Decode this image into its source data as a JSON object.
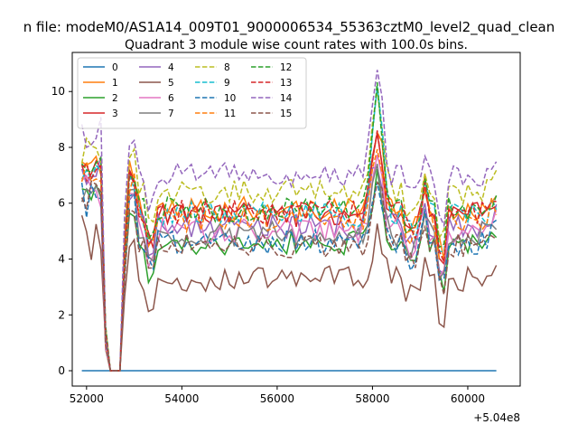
{
  "figure": {
    "suptitle": "n file: modeM0/AS1A14_009T01_9000006534_55363cztM0_level2_quad_clean",
    "title": "Quadrant 3 module wise count rates with 100.0s bins.",
    "offset_text": "+5.04e8"
  },
  "chart_data": {
    "type": "line",
    "title": "Quadrant 3 module wise count rates with 100.0s bins.",
    "xlabel": "",
    "ylabel": "",
    "x_offset": 504000000,
    "xlim": [
      51700,
      61100
    ],
    "ylim": [
      -0.55,
      11.4
    ],
    "xticks": [
      52000,
      54000,
      56000,
      58000,
      60000
    ],
    "xtick_labels": [
      "52000",
      "54000",
      "56000",
      "58000",
      "60000"
    ],
    "yticks": [
      0,
      2,
      4,
      6,
      8,
      10
    ],
    "ytick_labels": [
      "0",
      "2",
      "4",
      "6",
      "8",
      "10"
    ],
    "grid": false,
    "legend_position": "top-left",
    "x_range": [
      51900,
      60650
    ],
    "series": [
      {
        "name": "0",
        "color": "#1f77b4",
        "dash": "solid",
        "level": 0.0
      },
      {
        "name": "1",
        "color": "#ff7f0e",
        "dash": "solid",
        "level": 5.8,
        "spike": 8.9
      },
      {
        "name": "2",
        "color": "#2ca02c",
        "dash": "solid",
        "level": 4.6,
        "spike": 6.8
      },
      {
        "name": "3",
        "color": "#d62728",
        "dash": "solid",
        "level": 5.6,
        "spike": 8.2
      },
      {
        "name": "4",
        "color": "#9467bd",
        "dash": "solid",
        "level": 5.2,
        "spike": 7.7
      },
      {
        "name": "5",
        "color": "#8c564b",
        "dash": "solid",
        "level": 3.3,
        "spike": 4.9
      },
      {
        "name": "6",
        "color": "#e377c2",
        "dash": "solid",
        "level": 5.0,
        "spike": 7.5
      },
      {
        "name": "7",
        "color": "#7f7f7f",
        "dash": "solid",
        "level": 4.9,
        "spike": 7.3
      },
      {
        "name": "8",
        "color": "#bcbd22",
        "dash": "dashed",
        "level": 6.4,
        "spike": 9.7
      },
      {
        "name": "9",
        "color": "#17becf",
        "dash": "dashed",
        "level": 5.6,
        "spike": 10.0
      },
      {
        "name": "10",
        "color": "#1f77b4",
        "dash": "dashed",
        "level": 4.6,
        "spike": 6.7
      },
      {
        "name": "11",
        "color": "#ff7f0e",
        "dash": "dashed",
        "level": 5.4,
        "spike": 8.0
      },
      {
        "name": "12",
        "color": "#2ca02c",
        "dash": "dashed",
        "level": 5.8,
        "spike": 10.2
      },
      {
        "name": "13",
        "color": "#d62728",
        "dash": "dashed",
        "level": 5.7,
        "spike": 8.6
      },
      {
        "name": "14",
        "color": "#9467bd",
        "dash": "dashed",
        "level": 7.0,
        "spike": 10.9
      },
      {
        "name": "15",
        "color": "#8c564b",
        "dash": "dashed",
        "level": 4.5,
        "spike": 7.0
      }
    ]
  }
}
